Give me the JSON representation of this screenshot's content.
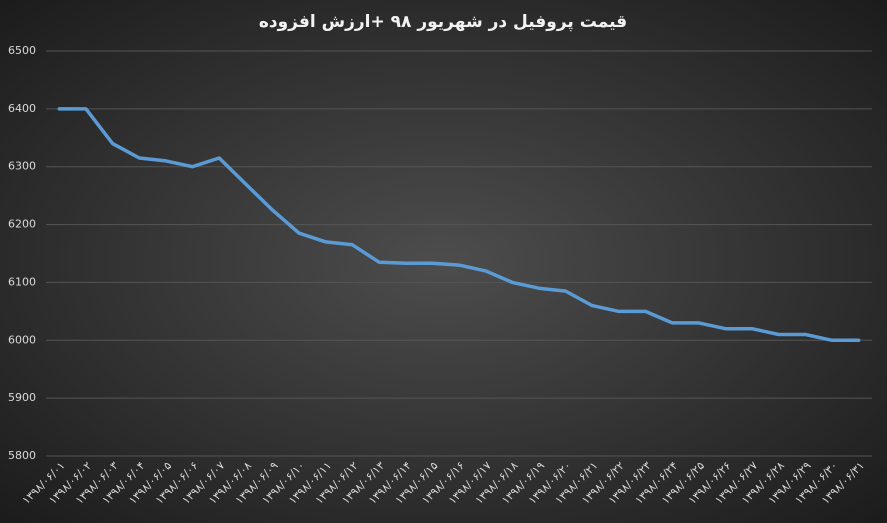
{
  "chart_data": {
    "type": "line",
    "title": "قیمت پروفیل در شهریور ۹۸ +ارزش افزوده",
    "categories": [
      "۱۳۹۸/۰۶/۰۱",
      "۱۳۹۸/۰۶/۰۲",
      "۱۳۹۸/۰۶/۰۳",
      "۱۳۹۸/۰۶/۰۴",
      "۱۳۹۸/۰۶/۰۵",
      "۱۳۹۸/۰۶/۰۶",
      "۱۳۹۸/۰۶/۰۷",
      "۱۳۹۸/۰۶/۰۸",
      "۱۳۹۸/۰۶/۰۹",
      "۱۳۹۸/۰۶/۱۰",
      "۱۳۹۸/۰۶/۱۱",
      "۱۳۹۸/۰۶/۱۲",
      "۱۳۹۸/۰۶/۱۳",
      "۱۳۹۸/۰۶/۱۴",
      "۱۳۹۸/۰۶/۱۵",
      "۱۳۹۸/۰۶/۱۶",
      "۱۳۹۸/۰۶/۱۷",
      "۱۳۹۸/۰۶/۱۸",
      "۱۳۹۸/۰۶/۱۹",
      "۱۳۹۸/۰۶/۲۰",
      "۱۳۹۸/۰۶/۲۱",
      "۱۳۹۸/۰۶/۲۲",
      "۱۳۹۸/۰۶/۲۳",
      "۱۳۹۸/۰۶/۲۴",
      "۱۳۹۸/۰۶/۲۵",
      "۱۳۹۸/۰۶/۲۶",
      "۱۳۹۸/۰۶/۲۷",
      "۱۳۹۸/۰۶/۲۸",
      "۱۳۹۸/۰۶/۲۹",
      "۱۳۹۸/۰۶/۳۰",
      "۱۳۹۸/۰۶/۳۱"
    ],
    "values": [
      6400,
      6400,
      6340,
      6315,
      6310,
      6300,
      6315,
      6270,
      6225,
      6185,
      6170,
      6165,
      6135,
      6133,
      6133,
      6130,
      6120,
      6100,
      6090,
      6085,
      6060,
      6050,
      6050,
      6030,
      6030,
      6020,
      6020,
      6010,
      6010,
      6000,
      6000
    ],
    "color": "#5b9bd5",
    "ylim": [
      5800,
      6500
    ],
    "yticks": [
      5800,
      5900,
      6000,
      6100,
      6200,
      6300,
      6400,
      6500
    ],
    "grid": true
  }
}
